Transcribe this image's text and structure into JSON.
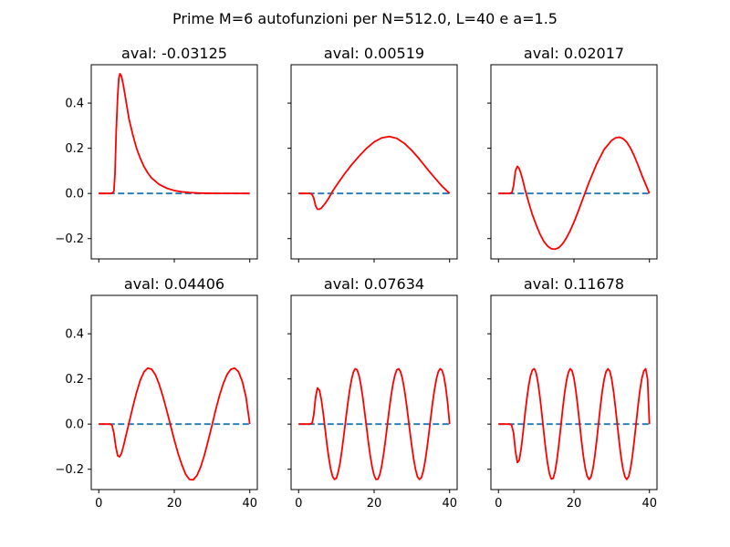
{
  "figure": {
    "suptitle": "Prime M=6 autofunzioni per N=512.0, L=40 e a=1.5"
  },
  "colors": {
    "eigenfunction": "#ff0000",
    "baseline": "#1f77b4",
    "frame": "#000000",
    "background": "#ffffff"
  },
  "axes_common": {
    "xlim": [
      -2,
      42
    ],
    "ylim": [
      -0.29,
      0.57
    ],
    "xticks": [
      0,
      20,
      40
    ],
    "xtick_labels": [
      "0",
      "20",
      "40"
    ],
    "yticks": [
      -0.2,
      0.0,
      0.2,
      0.4
    ],
    "ytick_labels": [
      "−0.2",
      "0.0",
      "0.2",
      "0.4"
    ],
    "sharex": true,
    "sharey": true,
    "grid": false
  },
  "chart_data": [
    {
      "type": "line",
      "title": "aval: -0.03125",
      "series": [
        {
          "style": "dashed",
          "x": [
            0,
            40
          ],
          "y": [
            0,
            0
          ]
        },
        {
          "style": "solid",
          "x": [
            0,
            3,
            3.6,
            4,
            4.3,
            4.6,
            5,
            5.3,
            5.6,
            6,
            6.5,
            7,
            7.5,
            8,
            9,
            10,
            11,
            12,
            13,
            14,
            16,
            18,
            20,
            22,
            24,
            26,
            28,
            30,
            32,
            35,
            40
          ],
          "y": [
            0,
            0,
            0.002,
            0.01,
            0.09,
            0.27,
            0.43,
            0.51,
            0.53,
            0.52,
            0.48,
            0.43,
            0.38,
            0.33,
            0.26,
            0.2,
            0.155,
            0.118,
            0.09,
            0.068,
            0.04,
            0.023,
            0.013,
            0.007,
            0.004,
            0.002,
            0.001,
            0.0005,
            0.0002,
            0.0001,
            0
          ]
        }
      ]
    },
    {
      "type": "line",
      "title": "aval: 0.00519",
      "series": [
        {
          "style": "dashed",
          "x": [
            0,
            40
          ],
          "y": [
            0,
            0
          ]
        },
        {
          "style": "solid",
          "x": [
            0,
            3,
            3.5,
            4,
            4.5,
            5,
            5.5,
            6,
            6.5,
            7,
            8,
            9,
            10,
            12,
            14,
            16,
            18,
            20,
            22,
            24,
            26,
            28,
            30,
            32,
            34,
            36,
            38,
            40
          ],
          "y": [
            0,
            0,
            -0.003,
            -0.02,
            -0.055,
            -0.07,
            -0.07,
            -0.065,
            -0.055,
            -0.045,
            -0.02,
            0.01,
            0.035,
            0.083,
            0.126,
            0.165,
            0.2,
            0.228,
            0.246,
            0.252,
            0.244,
            0.222,
            0.19,
            0.152,
            0.11,
            0.07,
            0.032,
            0
          ]
        }
      ]
    },
    {
      "type": "line",
      "title": "aval: 0.02017",
      "series": [
        {
          "style": "dashed",
          "x": [
            0,
            40
          ],
          "y": [
            0,
            0
          ]
        },
        {
          "style": "solid",
          "x": [
            0,
            3,
            3.6,
            4,
            4.5,
            5,
            5.5,
            6,
            6.5,
            7,
            7.5,
            8,
            9,
            10,
            11,
            12,
            13,
            14,
            15,
            16,
            17,
            18,
            19,
            20,
            21,
            22,
            24,
            26,
            28,
            30,
            31,
            32,
            33,
            34,
            35,
            36,
            37,
            38,
            39,
            40
          ],
          "y": [
            0,
            0,
            0.005,
            0.035,
            0.1,
            0.12,
            0.11,
            0.085,
            0.055,
            0.02,
            -0.01,
            -0.04,
            -0.095,
            -0.14,
            -0.18,
            -0.212,
            -0.233,
            -0.245,
            -0.247,
            -0.24,
            -0.223,
            -0.197,
            -0.165,
            -0.127,
            -0.085,
            -0.04,
            0.05,
            0.13,
            0.195,
            0.235,
            0.246,
            0.249,
            0.243,
            0.227,
            0.2,
            0.165,
            0.124,
            0.08,
            0.04,
            0
          ]
        }
      ]
    },
    {
      "type": "line",
      "title": "aval: 0.04406",
      "series": [
        {
          "style": "dashed",
          "x": [
            0,
            40
          ],
          "y": [
            0,
            0
          ]
        },
        {
          "style": "solid",
          "x": [
            0,
            3,
            3.5,
            4,
            4.5,
            5,
            5.5,
            6,
            6.5,
            7,
            7.5,
            8,
            9,
            10,
            11,
            12,
            13,
            14,
            15,
            16,
            17,
            18,
            19,
            20,
            21,
            22,
            23,
            24,
            25,
            26,
            27,
            28,
            29,
            30,
            31,
            32,
            33,
            34,
            35,
            36,
            37,
            38,
            39,
            40
          ],
          "y": [
            0,
            0,
            -0.005,
            -0.04,
            -0.1,
            -0.14,
            -0.145,
            -0.13,
            -0.1,
            -0.065,
            -0.03,
            0.005,
            0.075,
            0.14,
            0.195,
            0.232,
            0.248,
            0.243,
            0.218,
            0.176,
            0.122,
            0.06,
            -0.005,
            -0.07,
            -0.13,
            -0.18,
            -0.222,
            -0.245,
            -0.247,
            -0.228,
            -0.19,
            -0.136,
            -0.072,
            -0.005,
            0.065,
            0.128,
            0.18,
            0.22,
            0.243,
            0.248,
            0.232,
            0.19,
            0.12,
            0
          ]
        }
      ]
    },
    {
      "type": "line",
      "title": "aval: 0.07634",
      "series": [
        {
          "style": "dashed",
          "x": [
            0,
            40
          ],
          "y": [
            0,
            0
          ]
        },
        {
          "style": "solid",
          "x": [
            0,
            3,
            3.6,
            4,
            4.5,
            5,
            5.5,
            6,
            6.5,
            7,
            7.5,
            8,
            8.5,
            9,
            9.5,
            10,
            10.5,
            11,
            11.5,
            12,
            12.5,
            13,
            13.5,
            14,
            14.5,
            15,
            15.5,
            16,
            16.5,
            17,
            17.5,
            18,
            18.5,
            19,
            19.5,
            20,
            20.5,
            21,
            21.5,
            22,
            22.5,
            23,
            23.5,
            24,
            24.5,
            25,
            25.5,
            26,
            26.5,
            27,
            27.5,
            28,
            28.5,
            29,
            29.5,
            30,
            30.5,
            31,
            31.5,
            32,
            32.5,
            33,
            33.5,
            34,
            34.5,
            35,
            35.5,
            36,
            36.5,
            37,
            37.5,
            38,
            38.5,
            39,
            39.5,
            40
          ],
          "y": [
            0,
            0,
            0.005,
            0.04,
            0.12,
            0.16,
            0.15,
            0.11,
            0.05,
            -0.02,
            -0.09,
            -0.15,
            -0.2,
            -0.232,
            -0.245,
            -0.24,
            -0.212,
            -0.17,
            -0.112,
            -0.046,
            0.022,
            0.088,
            0.148,
            0.196,
            0.23,
            0.245,
            0.24,
            0.215,
            0.173,
            0.117,
            0.052,
            -0.016,
            -0.083,
            -0.143,
            -0.192,
            -0.227,
            -0.245,
            -0.244,
            -0.224,
            -0.186,
            -0.134,
            -0.072,
            -0.004,
            0.064,
            0.126,
            0.178,
            0.216,
            0.24,
            0.245,
            0.232,
            0.201,
            0.155,
            0.097,
            0.032,
            -0.036,
            -0.1,
            -0.157,
            -0.203,
            -0.234,
            -0.245,
            -0.238,
            -0.21,
            -0.166,
            -0.108,
            -0.042,
            0.028,
            0.095,
            0.153,
            0.2,
            0.232,
            0.245,
            0.238,
            0.21,
            0.16,
            0.09,
            0
          ]
        }
      ]
    },
    {
      "type": "line",
      "title": "aval: 0.11678",
      "series": [
        {
          "style": "dashed",
          "x": [
            0,
            40
          ],
          "y": [
            0,
            0
          ]
        },
        {
          "style": "solid",
          "x": [
            0,
            3,
            3.5,
            4,
            4.5,
            5,
            5.5,
            6,
            6.5,
            7,
            7.5,
            8,
            8.5,
            9,
            9.5,
            10,
            10.5,
            11,
            11.5,
            12,
            12.5,
            13,
            13.5,
            14,
            14.5,
            15,
            15.5,
            16,
            16.5,
            17,
            17.5,
            18,
            18.5,
            19,
            19.5,
            20,
            20.5,
            21,
            21.5,
            22,
            22.5,
            23,
            23.5,
            24,
            24.5,
            25,
            25.5,
            26,
            26.5,
            27,
            27.5,
            28,
            28.5,
            29,
            29.5,
            30,
            30.5,
            31,
            31.5,
            32,
            32.5,
            33,
            33.5,
            34,
            34.5,
            35,
            35.5,
            36,
            36.5,
            37,
            37.5,
            38,
            38.5,
            39,
            39.5,
            40
          ],
          "y": [
            0,
            0,
            -0.005,
            -0.04,
            -0.12,
            -0.17,
            -0.16,
            -0.11,
            -0.04,
            0.04,
            0.11,
            0.17,
            0.215,
            0.24,
            0.245,
            0.225,
            0.18,
            0.118,
            0.044,
            -0.035,
            -0.11,
            -0.173,
            -0.22,
            -0.243,
            -0.24,
            -0.21,
            -0.158,
            -0.09,
            -0.014,
            0.064,
            0.135,
            0.19,
            0.228,
            0.245,
            0.236,
            0.203,
            0.148,
            0.079,
            0.002,
            -0.075,
            -0.143,
            -0.196,
            -0.231,
            -0.245,
            -0.235,
            -0.2,
            -0.145,
            -0.076,
            0.001,
            0.078,
            0.146,
            0.198,
            0.232,
            0.245,
            0.234,
            0.199,
            0.143,
            0.072,
            -0.005,
            -0.081,
            -0.149,
            -0.2,
            -0.233,
            -0.245,
            -0.232,
            -0.196,
            -0.14,
            -0.07,
            0.008,
            0.085,
            0.152,
            0.203,
            0.235,
            0.245,
            0.2,
            0
          ]
        }
      ]
    }
  ]
}
